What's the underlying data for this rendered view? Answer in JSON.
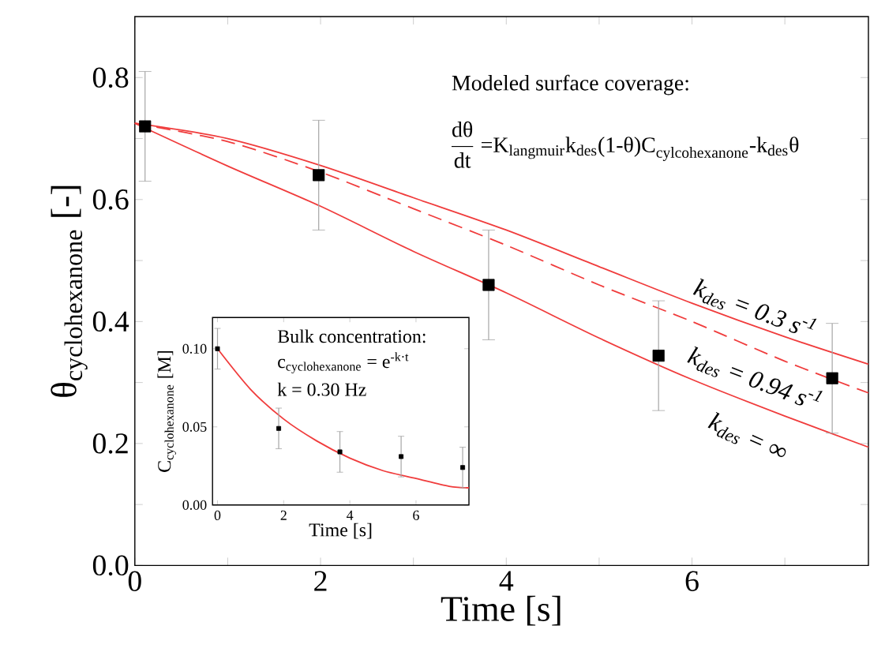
{
  "chart_data": [
    {
      "type": "line",
      "xlabel": "Time [s]",
      "ylabel": "\\text{θ}_{\\text{cyclohexanone}}\\text{ [-]}",
      "xlim": [
        0,
        7.9
      ],
      "ylim": [
        0,
        0.9
      ],
      "xticks": [
        0,
        {
          "value": 1,
          "label": null
        },
        2,
        {
          "value": 3,
          "label": null
        },
        4,
        {
          "value": 5,
          "label": null
        },
        6,
        {
          "value": 7,
          "label": null
        }
      ],
      "yticks": [
        {
          "value": 0,
          "label": "0.0"
        },
        {
          "value": 0.1,
          "label": null
        },
        {
          "value": 0.2,
          "label": "0.2"
        },
        {
          "value": 0.3,
          "label": null
        },
        {
          "value": 0.4,
          "label": "0.4"
        },
        {
          "value": 0.5,
          "label": null
        },
        {
          "value": 0.6,
          "label": "0.6"
        },
        {
          "value": 0.7,
          "label": null
        },
        {
          "value": 0.8,
          "label": "0.8"
        }
      ],
      "annotations": [
        "Modeled surface coverage:",
        "\\frac{\\text{dθ}}{\\text{dt}}\\text{ =K}_{\\text{langmuir}}\\text{k}_{\\text{des}}\\text{(1-θ)C}_{\\text{cylcohexanone}}\\text{-k}_{\\text{des}}\\text{θ}"
      ],
      "series": [
        {
          "name": "k$_{des}$ = 0.3 s$^{-1}$",
          "color": "#f03c3c",
          "line_style": "solid",
          "x": [
            0,
            1,
            2,
            3,
            4,
            5,
            6,
            7,
            7.9
          ],
          "values": [
            0.725,
            0.7,
            0.656,
            0.603,
            0.55,
            0.49,
            0.43,
            0.375,
            0.33
          ]
        },
        {
          "name": "k$_{des}$ = 0.94 s$^{-1}$",
          "color": "#f03c3c",
          "line_style": "dashed",
          "x": [
            0,
            1,
            2,
            3,
            4,
            5,
            6,
            7,
            7.9
          ],
          "values": [
            0.725,
            0.695,
            0.645,
            0.585,
            0.525,
            0.46,
            0.4,
            0.335,
            0.283
          ]
        },
        {
          "name": "k$_{des}$ = ∞",
          "color": "#f03c3c",
          "line_style": "solid",
          "x": [
            0,
            1,
            2,
            3,
            4,
            5,
            6,
            7,
            7.9
          ],
          "values": [
            0.725,
            0.655,
            0.589,
            0.515,
            0.447,
            0.373,
            0.305,
            0.245,
            0.194
          ]
        },
        {
          "type": "scatter",
          "color": "#000000",
          "marker": "square",
          "x": [
            0.11,
            1.98,
            3.81,
            5.64,
            7.51
          ],
          "values": [
            0.72,
            0.64,
            0.46,
            0.344,
            0.307
          ],
          "errors": [
            0.09,
            0.09,
            0.09,
            0.09,
            0.09
          ]
        }
      ]
    },
    {
      "type": "line",
      "xlabel": "Time [s]",
      "ylabel": "\\text{C}_{\\text{cyclohexanone}}\\text{ [M]}",
      "xlim": [
        -0.15,
        7.6
      ],
      "ylim": [
        0,
        0.12
      ],
      "xticks": [
        0,
        2,
        4,
        6
      ],
      "yticks": [
        {
          "value": 0,
          "label": "0.00"
        },
        {
          "value": 0.05,
          "label": "0.05"
        },
        {
          "value": 0.1,
          "label": "0.10"
        }
      ],
      "annotations": [
        "Bulk concentration:",
        "\\text{c}_{\\text{cyclohexanone}}\\text{ = e}^{\\text{-k·t}}",
        "k = 0.30 Hz"
      ],
      "series": [
        {
          "color": "#f03c3c",
          "line_style": "solid",
          "x": [
            0,
            1,
            2,
            3,
            4,
            5,
            6,
            7,
            7.6
          ],
          "values": [
            0.1,
            0.074,
            0.055,
            0.041,
            0.03,
            0.022,
            0.017,
            0.012,
            0.011
          ]
        },
        {
          "type": "scatter",
          "color": "#000000",
          "marker": "square",
          "x": [
            0,
            1.85,
            3.7,
            5.55,
            7.41
          ],
          "values": [
            0.1,
            0.049,
            0.034,
            0.031,
            0.024
          ],
          "errors": [
            0.013,
            0.013,
            0.013,
            0.013,
            0.013
          ]
        }
      ]
    }
  ]
}
